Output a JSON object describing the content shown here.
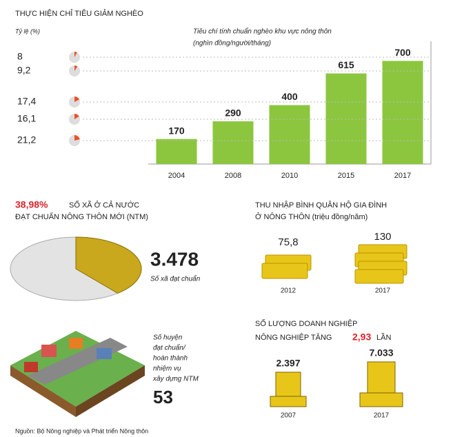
{
  "header": {
    "title": "THỰC HIỆN CHỈ TIÊU GIẢM NGHÈO"
  },
  "poverty": {
    "rate_axis": "Tỷ lệ (%)",
    "rates": [
      8,
      9.2,
      17.4,
      16.1,
      21.2
    ],
    "rate_labels": [
      "8",
      "9,2",
      "17,4",
      "16,1",
      "21,2"
    ]
  },
  "chart_data": {
    "type": "bar",
    "title": "Tiêu chí tính chuẩn nghèo khu vực nông thôn",
    "subtitle": "(nghìn đồng/người/tháng)",
    "categories": [
      "2004",
      "2008",
      "2010",
      "2015",
      "2017"
    ],
    "values": [
      170,
      290,
      400,
      615,
      700
    ],
    "color": "#8cc63f",
    "ylim": [
      0,
      800
    ]
  },
  "ntm": {
    "share": 38.98,
    "share_label": "38,98%",
    "title_1": "SỐ XÃ Ở CẢ NƯỚC",
    "title_2": "ĐẠT CHUẨN NÔNG THÔN MỚI (NTM)",
    "communes": "3.478",
    "communes_label": "Số xã đạt chuẩn",
    "districts_label": [
      "Số huyện",
      "đạt chuẩn/",
      "hoàn thành",
      "nhiệm vụ",
      "xây dựng NTM"
    ],
    "districts": "53"
  },
  "income": {
    "title_1": "THU NHẬP BÌNH QUÂN HỘ GIA ĐÌNH",
    "title_2": "Ở NÔNG THÔN (triệu đồng/năm)",
    "items": [
      {
        "value": "75,8",
        "year": "2012"
      },
      {
        "value": "130",
        "year": "2017"
      }
    ]
  },
  "enterprises": {
    "title_1": "SỐ LƯỢNG DOANH NGHIỆP",
    "title_2": "NÔNG NGHIỆP TĂNG",
    "factor": "2,93",
    "unit": "LẦN",
    "items": [
      {
        "value": "2.397",
        "year": "2007"
      },
      {
        "value": "7.033",
        "year": "2017"
      }
    ]
  },
  "source": "Nguồn: Bộ Nông nghiệp và Phát triển Nông thôn"
}
